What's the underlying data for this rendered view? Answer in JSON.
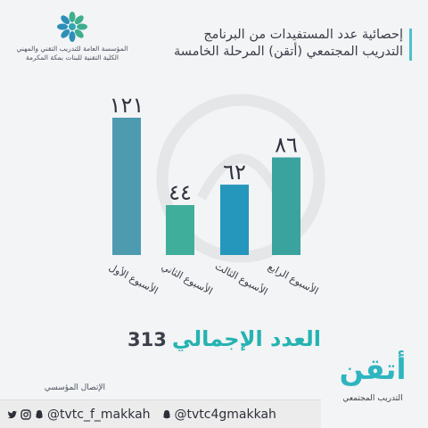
{
  "org": {
    "line1": "المؤسسة العامة للتدريب التقني والمهني",
    "line2": "الكلية التقنية للبنات بمكة المكرمة"
  },
  "header": {
    "line1": "إحصائية عدد المستفيدات من البرنامج",
    "line2": "التدريب المجتمعي (أتقن) المرحلة الخامسة"
  },
  "chart_data": {
    "type": "bar",
    "title": "",
    "xlabel": "",
    "ylabel": "",
    "categories": [
      "الأسبوع الأول",
      "الأسبوع الثاني",
      "الأسبوع الثالث",
      "الأسبوع الرابع"
    ],
    "value_labels": [
      "١٢١",
      "٤٤",
      "٦٢",
      "٨٦"
    ],
    "values": [
      121,
      44,
      62,
      86
    ],
    "colors": [
      "#4e9bb0",
      "#3fae9a",
      "#2596bc",
      "#3aa39e"
    ],
    "ylim": [
      0,
      121
    ],
    "grid": false,
    "legend": "none"
  },
  "total": {
    "label": "العدد الإجمالي",
    "value": "313"
  },
  "contact": {
    "label": "الإتصال المؤسسي"
  },
  "social": {
    "handle1": "@tvtc_f_makkah",
    "handle2": "@tvtc4gmakkah"
  },
  "brand": {
    "word": "أتقن",
    "subtitle": "التدريب المجتمعي"
  }
}
